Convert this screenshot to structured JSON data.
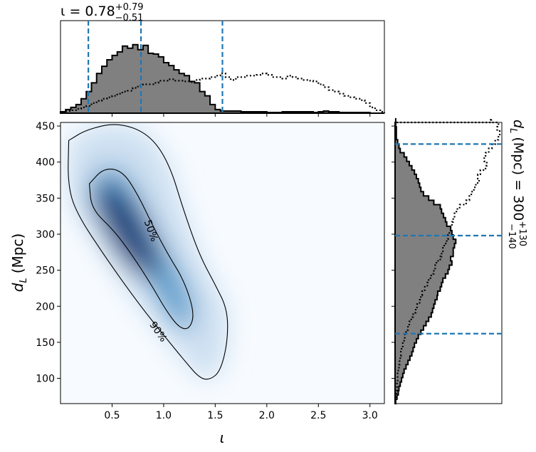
{
  "chart_data": [
    {
      "type": "heatmap",
      "panel": "joint",
      "xlabel": "ι",
      "ylabel_main": "d",
      "ylabel_sub": "L",
      "ylabel_unit": "(Mpc)",
      "xlim": [
        0.0,
        3.14
      ],
      "ylim": [
        65,
        455
      ],
      "x_ticks": [
        0.5,
        1.0,
        1.5,
        2.0,
        2.5,
        3.0
      ],
      "x_tick_labels": [
        "0.5",
        "1.0",
        "1.5",
        "2.0",
        "2.5",
        "3.0"
      ],
      "y_ticks": [
        100,
        150,
        200,
        250,
        300,
        350,
        400,
        450
      ],
      "y_tick_labels": [
        "100",
        "150",
        "200",
        "250",
        "300",
        "350",
        "400",
        "450"
      ],
      "colormap": "Blues",
      "density_peak": {
        "x": 0.65,
        "y": 305
      },
      "contours": [
        {
          "label": "90%",
          "label_position": {
            "x": 0.95,
            "y": 165
          },
          "points": [
            [
              0.08,
              430
            ],
            [
              0.25,
              445
            ],
            [
              0.55,
              455
            ],
            [
              0.85,
              440
            ],
            [
              1.05,
              400
            ],
            [
              1.2,
              330
            ],
            [
              1.35,
              270
            ],
            [
              1.5,
              230
            ],
            [
              1.62,
              195
            ],
            [
              1.62,
              150
            ],
            [
              1.55,
              110
            ],
            [
              1.45,
              98
            ],
            [
              1.35,
              100
            ],
            [
              1.2,
              125
            ],
            [
              1.0,
              160
            ],
            [
              0.75,
              205
            ],
            [
              0.45,
              265
            ],
            [
              0.15,
              330
            ],
            [
              0.07,
              370
            ],
            [
              0.08,
              430
            ]
          ]
        },
        {
          "label": "50%",
          "label_position": {
            "x": 0.88,
            "y": 305
          },
          "points": [
            [
              0.28,
              370
            ],
            [
              0.42,
              392
            ],
            [
              0.6,
              388
            ],
            [
              0.75,
              355
            ],
            [
              0.9,
              310
            ],
            [
              1.05,
              270
            ],
            [
              1.2,
              235
            ],
            [
              1.3,
              190
            ],
            [
              1.25,
              168
            ],
            [
              1.15,
              170
            ],
            [
              1.02,
              195
            ],
            [
              0.88,
              230
            ],
            [
              0.7,
              270
            ],
            [
              0.52,
              305
            ],
            [
              0.3,
              335
            ],
            [
              0.28,
              370
            ]
          ]
        }
      ]
    },
    {
      "type": "histogram",
      "panel": "top-marginal",
      "title_main": "ι = 0.78",
      "title_sup": "+0.79",
      "title_sub": "−0.51",
      "xlim": [
        0.0,
        3.14
      ],
      "bin_start": 0.0,
      "bin_width": 0.05,
      "series": [
        {
          "name": "",
          "style": "filled-gray",
          "fill": "#808080",
          "values": [
            2,
            5,
            8,
            12,
            20,
            30,
            42,
            55,
            65,
            74,
            80,
            85,
            93,
            90,
            95,
            88,
            94,
            83,
            82,
            78,
            70,
            66,
            60,
            55,
            52,
            44,
            42,
            30,
            24,
            12,
            5,
            3,
            3,
            3,
            3,
            2,
            2,
            2,
            2,
            2,
            1,
            1,
            1,
            2,
            2,
            2,
            2,
            2,
            2,
            1,
            2,
            3,
            2,
            2,
            1,
            1,
            1,
            1,
            1,
            1,
            0,
            0,
            0
          ]
        },
        {
          "name": "",
          "style": "dotted",
          "values": [
            2,
            3,
            4,
            6,
            8,
            10,
            14,
            17,
            20,
            22,
            24,
            27,
            30,
            31,
            35,
            38,
            40,
            40,
            42,
            45,
            45,
            47,
            45,
            45,
            44,
            43,
            46,
            48,
            48,
            50,
            52,
            55,
            50,
            46,
            50,
            50,
            52,
            52,
            53,
            55,
            53,
            50,
            50,
            48,
            52,
            50,
            48,
            46,
            45,
            44,
            40,
            36,
            32,
            30,
            27,
            24,
            22,
            20,
            18,
            14,
            8,
            4,
            2
          ]
        }
      ],
      "vlines": [
        0.27,
        0.78,
        1.57
      ]
    },
    {
      "type": "histogram",
      "panel": "right-marginal",
      "orientation": "horizontal",
      "side_label_main": "d",
      "side_label_sub": "L",
      "side_label_rest": "(Mpc) = 300",
      "side_label_sup": "+130",
      "side_label_sub2": "−140",
      "ylim": [
        65,
        455
      ],
      "bin_start": 65,
      "bin_width": 6,
      "series": [
        {
          "name": "",
          "style": "filled-gray",
          "fill": "#808080",
          "values": [
            1,
            3,
            5,
            6,
            8,
            10,
            12,
            14,
            17,
            20,
            23,
            26,
            28,
            30,
            33,
            36,
            40,
            44,
            48,
            52,
            56,
            58,
            60,
            62,
            65,
            66,
            70,
            72,
            74,
            78,
            82,
            84,
            88,
            86,
            90,
            90,
            92,
            94,
            90,
            88,
            86,
            80,
            78,
            75,
            72,
            70,
            60,
            52,
            44,
            40,
            38,
            36,
            33,
            30,
            26,
            22,
            18,
            14,
            8,
            6,
            4,
            2,
            2,
            2,
            1,
            1,
            1
          ]
        },
        {
          "name": "",
          "style": "dotted",
          "values": [
            1,
            2,
            2,
            3,
            3,
            4,
            4,
            5,
            6,
            7,
            8,
            9,
            10,
            12,
            14,
            15,
            17,
            20,
            22,
            25,
            28,
            32,
            34,
            38,
            40,
            42,
            46,
            50,
            52,
            56,
            60,
            62,
            64,
            70,
            72,
            74,
            76,
            80,
            82,
            84,
            86,
            88,
            90,
            92,
            95,
            100,
            110,
            115,
            118,
            122,
            125,
            130,
            128,
            132,
            140,
            142,
            138,
            140,
            145,
            150,
            155,
            160,
            162,
            158,
            160,
            150,
            148
          ]
        }
      ],
      "hlines": [
        162,
        298,
        425
      ]
    }
  ]
}
